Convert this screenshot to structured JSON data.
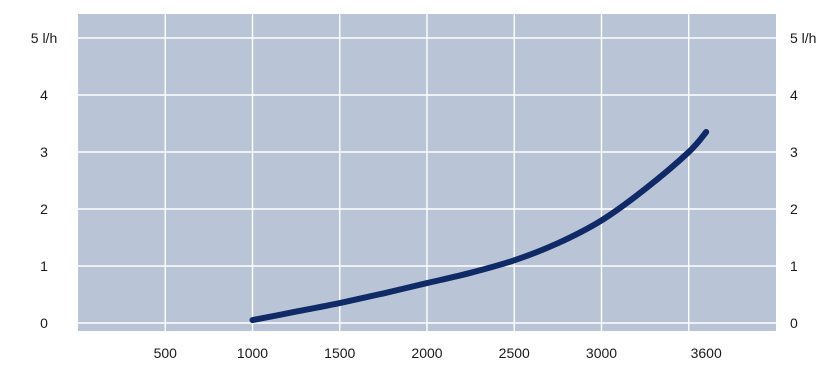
{
  "chart_data": {
    "type": "line",
    "title": "",
    "xlabel": "",
    "ylabel": "",
    "x_ticks": [
      "500",
      "1000",
      "1500",
      "2000",
      "2500",
      "3000",
      "3600"
    ],
    "y_ticks": [
      "0",
      "1",
      "2",
      "3",
      "4",
      "5 l/h"
    ],
    "xlim": [
      0,
      4000
    ],
    "ylim": [
      0,
      5
    ],
    "grid": true,
    "series": [
      {
        "x": [
          1000,
          1250,
          1500,
          1750,
          2000,
          2250,
          2500,
          2750,
          3000,
          3250,
          3500,
          3600
        ],
        "y": [
          0.05,
          0.2,
          0.35,
          0.52,
          0.7,
          0.88,
          1.1,
          1.4,
          1.8,
          2.35,
          3.0,
          3.35
        ]
      }
    ],
    "colors": {
      "plot_bg": "#b9c4d6",
      "grid": "#ffffff",
      "line": "#0f2a66"
    }
  }
}
